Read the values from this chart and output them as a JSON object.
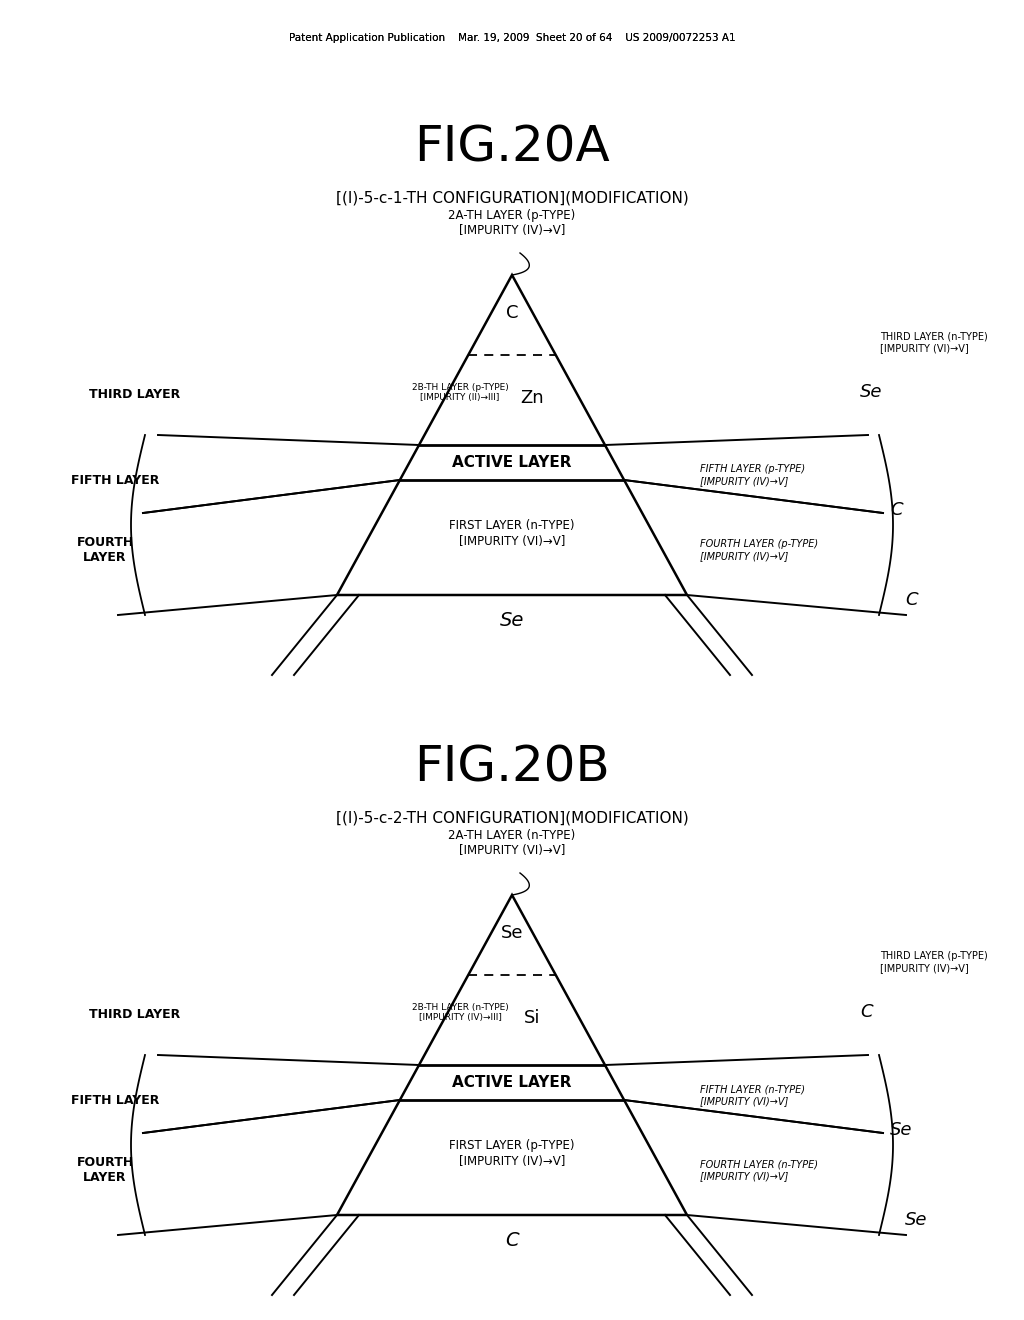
{
  "bg_color": "#ffffff",
  "header_text": "Patent Application Publication    Mar. 19, 2009  Sheet 20 of 64    US 2009/0072253 A1",
  "figA_title": "FIG.20A",
  "figA_subtitle": "[(I)-5-c-1-TH CONFIGURATION](MODIFICATION)",
  "figA_2a_label": "2A-TH LAYER (p-TYPE)\n[IMPURITY (IV)→V]",
  "figA_triangle_top_label": "C",
  "figA_2b_label": "2B-TH LAYER (p-TYPE)\n[IMPURITY (II)→III]",
  "figA_mid_label": "Zn",
  "figA_active_label": "ACTIVE LAYER",
  "figA_first_layer_label": "FIRST LAYER (n-TYPE)\n[IMPURITY (VI)→V]",
  "figA_se_label": "Se",
  "figA_third_layer_left": "THIRD LAYER",
  "figA_fifth_layer_left": "FIFTH LAYER",
  "figA_fourth_layer_left": "FOURTH\nLAYER",
  "figA_third_layer_right_label": "THIRD LAYER (n-TYPE)\n[IMPURITY (VI)→V]",
  "figA_third_layer_right_symbol": "Se",
  "figA_fifth_layer_right_label": "FIFTH LAYER (p-TYPE)\n[IMPURITY (IV)→V]",
  "figA_fifth_layer_right_symbol": "C",
  "figA_fourth_layer_right_label": "FOURTH LAYER (p-TYPE)\n[IMPURITY (IV)→V]",
  "figA_fourth_layer_right_symbol": "C",
  "figB_title": "FIG.20B",
  "figB_subtitle": "[(I)-5-c-2-TH CONFIGURATION](MODIFICATION)",
  "figB_2a_label": "2A-TH LAYER (n-TYPE)\n[IMPURITY (VI)→V]",
  "figB_triangle_top_label": "Se",
  "figB_2b_label": "2B-TH LAYER (n-TYPE)\n[IMPURITY (IV)→III]",
  "figB_mid_label": "Si",
  "figB_active_label": "ACTIVE LAYER",
  "figB_first_layer_label": "FIRST LAYER (p-TYPE)\n[IMPURITY (IV)→V]",
  "figB_c_label": "C",
  "figB_third_layer_left": "THIRD LAYER",
  "figB_fifth_layer_left": "FIFTH LAYER",
  "figB_fourth_layer_left": "FOURTH\nLAYER",
  "figB_third_layer_right_label": "THIRD LAYER (p-TYPE)\n[IMPURITY (IV)→V]",
  "figB_third_layer_right_symbol": "C",
  "figB_fifth_layer_right_label": "FIFTH LAYER (n-TYPE)\n[IMPURITY (VI)→V]",
  "figB_fifth_layer_right_symbol": "Se",
  "figB_fourth_layer_right_label": "FOURTH LAYER (n-TYPE)\n[IMPURITY (VI)→V]",
  "figB_fourth_layer_right_symbol": "Se"
}
